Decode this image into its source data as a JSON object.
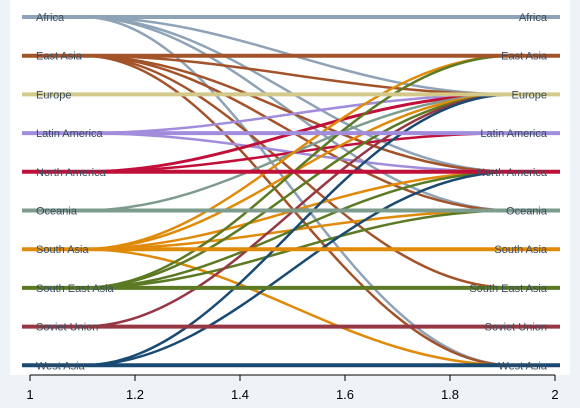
{
  "chart_data": {
    "type": "line",
    "title": "",
    "xlabel": "",
    "ylabel": "",
    "x_ticks": [
      "1",
      "1.2",
      "1.4",
      "1.6",
      "1.8",
      "2"
    ],
    "xlim": [
      1,
      2
    ],
    "grid": false,
    "legend": "none",
    "regions": [
      {
        "name": "Africa",
        "color": "#8ea3b7"
      },
      {
        "name": "East Asia",
        "color": "#a3532a"
      },
      {
        "name": "Europe",
        "color": "#d3c98a"
      },
      {
        "name": "Latin America",
        "color": "#a18ddb"
      },
      {
        "name": "North America",
        "color": "#c0103a"
      },
      {
        "name": "Oceania",
        "color": "#7e9c8e"
      },
      {
        "name": "South Asia",
        "color": "#e08a0a"
      },
      {
        "name": "South East Asia",
        "color": "#5b7a23"
      },
      {
        "name": "Soviet Union",
        "color": "#963843"
      },
      {
        "name": "West Asia",
        "color": "#1a4a72"
      }
    ],
    "flows": [
      {
        "from": "Africa",
        "to": "Africa",
        "width": 4
      },
      {
        "from": "Africa",
        "to": "Europe",
        "width": 2.5
      },
      {
        "from": "Africa",
        "to": "North America",
        "width": 2.5
      },
      {
        "from": "Africa",
        "to": "Oceania",
        "width": 2.5
      },
      {
        "from": "Africa",
        "to": "West Asia",
        "width": 2.5
      },
      {
        "from": "East Asia",
        "to": "East Asia",
        "width": 4
      },
      {
        "from": "East Asia",
        "to": "Europe",
        "width": 2.5
      },
      {
        "from": "East Asia",
        "to": "North America",
        "width": 2.5
      },
      {
        "from": "East Asia",
        "to": "Oceania",
        "width": 2.5
      },
      {
        "from": "East Asia",
        "to": "South East Asia",
        "width": 2.5
      },
      {
        "from": "East Asia",
        "to": "West Asia",
        "width": 2.5
      },
      {
        "from": "Europe",
        "to": "Europe",
        "width": 4
      },
      {
        "from": "Latin America",
        "to": "Latin America",
        "width": 4
      },
      {
        "from": "Latin America",
        "to": "Europe",
        "width": 2.5
      },
      {
        "from": "Latin America",
        "to": "North America",
        "width": 2.5
      },
      {
        "from": "North America",
        "to": "North America",
        "width": 4
      },
      {
        "from": "North America",
        "to": "Europe",
        "width": 3
      },
      {
        "from": "North America",
        "to": "Latin America",
        "width": 2.5
      },
      {
        "from": "Oceania",
        "to": "Oceania",
        "width": 4
      },
      {
        "from": "Oceania",
        "to": "Europe",
        "width": 2.5
      },
      {
        "from": "South Asia",
        "to": "South Asia",
        "width": 4
      },
      {
        "from": "South Asia",
        "to": "East Asia",
        "width": 2.5
      },
      {
        "from": "South Asia",
        "to": "Europe",
        "width": 2.5
      },
      {
        "from": "South Asia",
        "to": "North America",
        "width": 2.5
      },
      {
        "from": "South Asia",
        "to": "Oceania",
        "width": 2.5
      },
      {
        "from": "South Asia",
        "to": "West Asia",
        "width": 2.5
      },
      {
        "from": "South East Asia",
        "to": "South East Asia",
        "width": 4
      },
      {
        "from": "South East Asia",
        "to": "East Asia",
        "width": 2.5
      },
      {
        "from": "South East Asia",
        "to": "Europe",
        "width": 2.5
      },
      {
        "from": "South East Asia",
        "to": "North America",
        "width": 2.5
      },
      {
        "from": "South East Asia",
        "to": "Oceania",
        "width": 2.5
      },
      {
        "from": "Soviet Union",
        "to": "Soviet Union",
        "width": 4
      },
      {
        "from": "Soviet Union",
        "to": "Europe",
        "width": 2.5
      },
      {
        "from": "West Asia",
        "to": "West Asia",
        "width": 4
      },
      {
        "from": "West Asia",
        "to": "Europe",
        "width": 2.5
      },
      {
        "from": "West Asia",
        "to": "North America",
        "width": 2.5
      }
    ]
  }
}
